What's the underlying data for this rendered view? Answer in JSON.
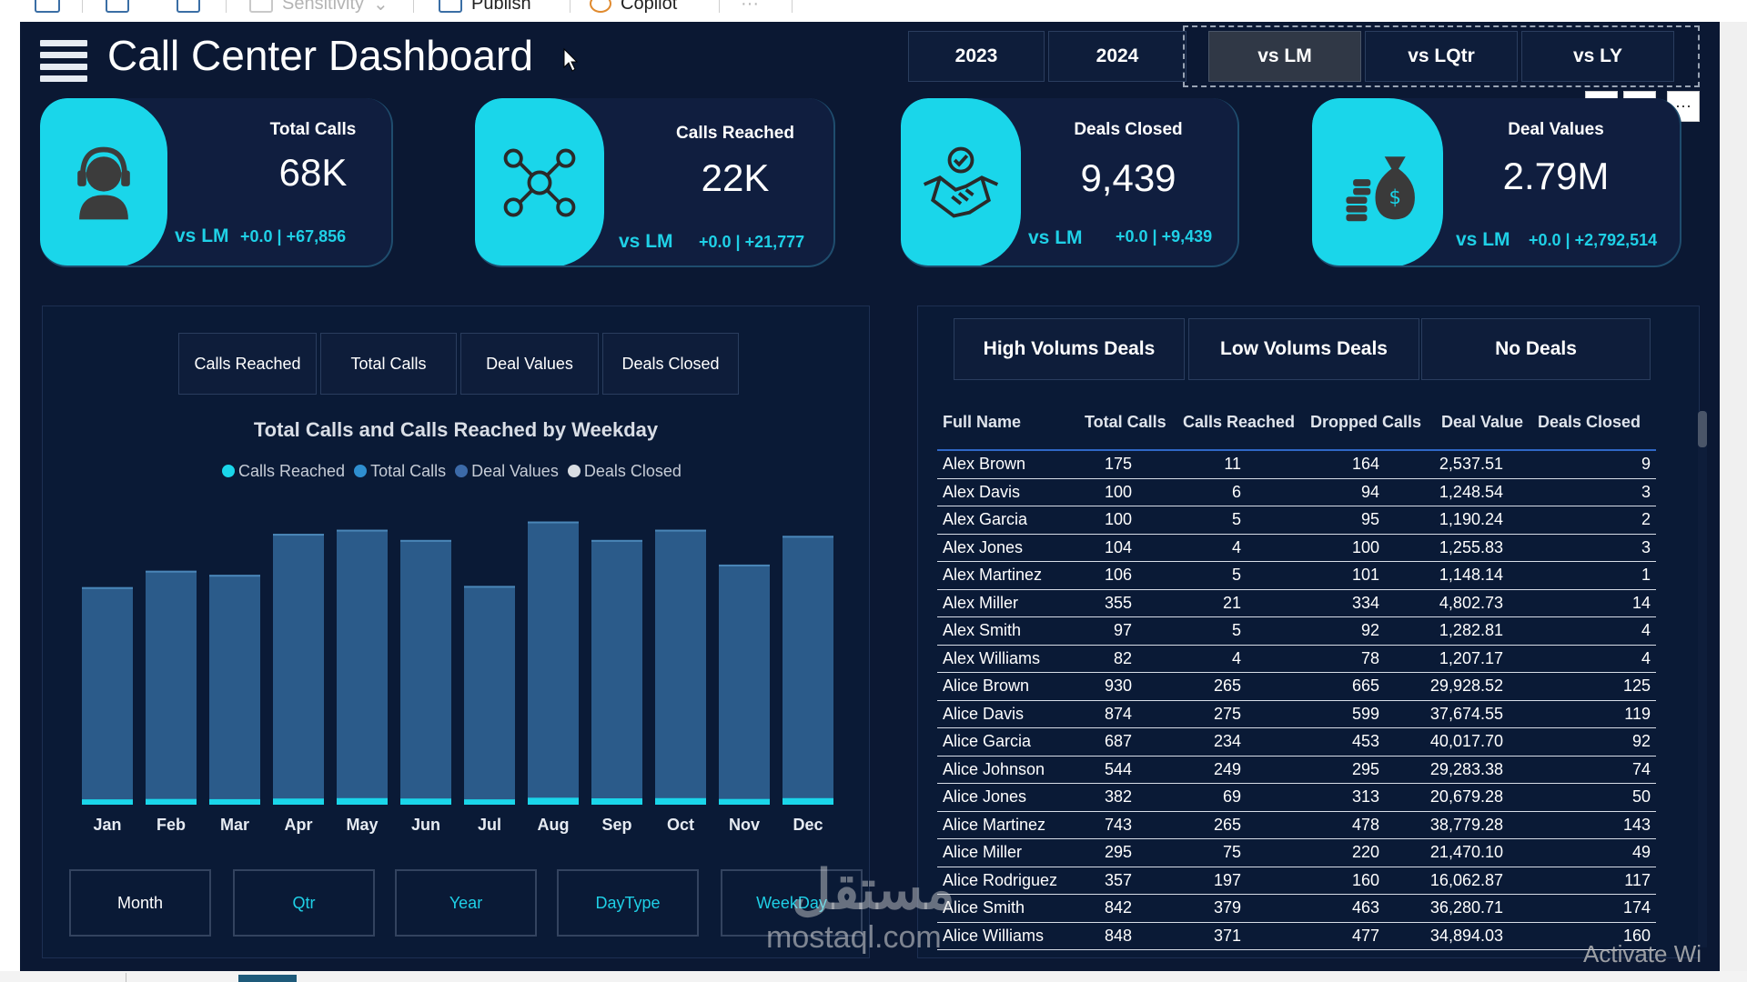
{
  "toolbar": {
    "items": [
      {
        "label": "Sensitivity",
        "dim": true
      },
      {
        "label": "Publish",
        "dim": false
      },
      {
        "label": "Copilot",
        "dim": false
      }
    ]
  },
  "header": {
    "title": "Call Center Dashboard",
    "years": [
      "2023",
      "2024"
    ],
    "comparisons": [
      "vs LM",
      "vs LQtr",
      "vs LY"
    ]
  },
  "kpis": [
    {
      "label": "Total Calls",
      "value": "68K",
      "vs": "vs LM",
      "delta": "+0.0 | +67,856",
      "icon": "headset-agent-icon"
    },
    {
      "label": "Calls Reached",
      "value": "22K",
      "vs": "vs LM",
      "delta": "+0.0 | +21,777",
      "icon": "network-people-icon"
    },
    {
      "label": "Deals Closed",
      "value": "9,439",
      "vs": "vs LM",
      "delta": "+0.0 | +9,439",
      "icon": "handshake-icon"
    },
    {
      "label": "Deal Values",
      "value": "2.79M",
      "vs": "vs LM",
      "delta": "+0.0 | +2,792,514",
      "icon": "money-bag-icon"
    }
  ],
  "chart_tabs": [
    "Calls Reached",
    "Total Calls",
    "Deal Values",
    "Deals Closed"
  ],
  "period_buttons": [
    "Month",
    "Qtr",
    "Year",
    "DayType",
    "WeekDay"
  ],
  "colors": {
    "accent": "#1ad6ea",
    "bar": "#2b5b8a",
    "background": "#0b1833"
  },
  "chart_data": {
    "type": "bar",
    "title": "Total Calls and Calls Reached by Weekday",
    "legend": [
      "Calls Reached",
      "Total Calls",
      "Deal Values",
      "Deals Closed"
    ],
    "legend_colors": [
      "#1ad6ea",
      "#2f8fd0",
      "#3c6aa8",
      "#d9dde3"
    ],
    "categories": [
      "Jan",
      "Feb",
      "Mar",
      "Apr",
      "May",
      "Jun",
      "Jul",
      "Aug",
      "Sep",
      "Oct",
      "Nov",
      "Dec"
    ],
    "series": [
      {
        "name": "Total Calls",
        "values": [
          5300,
          5700,
          5600,
          6600,
          6700,
          6450,
          5330,
          6900,
          6450,
          6700,
          5850,
          6550
        ]
      },
      {
        "name": "Calls Reached",
        "values": [
          130,
          140,
          135,
          150,
          160,
          150,
          130,
          170,
          155,
          160,
          140,
          160
        ]
      }
    ],
    "ylim": [
      0,
      7200
    ],
    "grid": false,
    "legend_position": "top"
  },
  "deal_buttons": [
    "High Volums Deals",
    "Low Volums Deals",
    "No Deals"
  ],
  "table": {
    "columns": [
      "Full Name",
      "Total Calls",
      "Calls Reached",
      "Dropped Calls",
      "Deal Value",
      "Deals Closed"
    ],
    "rows": [
      [
        "Alex Brown",
        "175",
        "11",
        "164",
        "2,537.51",
        "9"
      ],
      [
        "Alex Davis",
        "100",
        "6",
        "94",
        "1,248.54",
        "3"
      ],
      [
        "Alex Garcia",
        "100",
        "5",
        "95",
        "1,190.24",
        "2"
      ],
      [
        "Alex Jones",
        "104",
        "4",
        "100",
        "1,255.83",
        "3"
      ],
      [
        "Alex Martinez",
        "106",
        "5",
        "101",
        "1,148.14",
        "1"
      ],
      [
        "Alex Miller",
        "355",
        "21",
        "334",
        "4,802.73",
        "14"
      ],
      [
        "Alex Smith",
        "97",
        "5",
        "92",
        "1,282.81",
        "4"
      ],
      [
        "Alex Williams",
        "82",
        "4",
        "78",
        "1,207.17",
        "4"
      ],
      [
        "Alice Brown",
        "930",
        "265",
        "665",
        "29,928.52",
        "125"
      ],
      [
        "Alice Davis",
        "874",
        "275",
        "599",
        "37,674.55",
        "119"
      ],
      [
        "Alice Garcia",
        "687",
        "234",
        "453",
        "40,017.70",
        "92"
      ],
      [
        "Alice Johnson",
        "544",
        "249",
        "295",
        "29,283.38",
        "74"
      ],
      [
        "Alice Jones",
        "382",
        "69",
        "313",
        "20,679.28",
        "50"
      ],
      [
        "Alice Martinez",
        "743",
        "265",
        "478",
        "38,779.28",
        "143"
      ],
      [
        "Alice Miller",
        "295",
        "75",
        "220",
        "21,470.10",
        "49"
      ],
      [
        "Alice Rodriguez",
        "357",
        "197",
        "160",
        "16,062.87",
        "117"
      ],
      [
        "Alice Smith",
        "842",
        "379",
        "463",
        "36,280.71",
        "174"
      ],
      [
        "Alice Williams",
        "848",
        "371",
        "477",
        "34,894.03",
        "160"
      ]
    ]
  },
  "overlay": {
    "watermark": "mostaql.com",
    "watermark_ar": "مستقل",
    "activate": "Activate Wi"
  }
}
